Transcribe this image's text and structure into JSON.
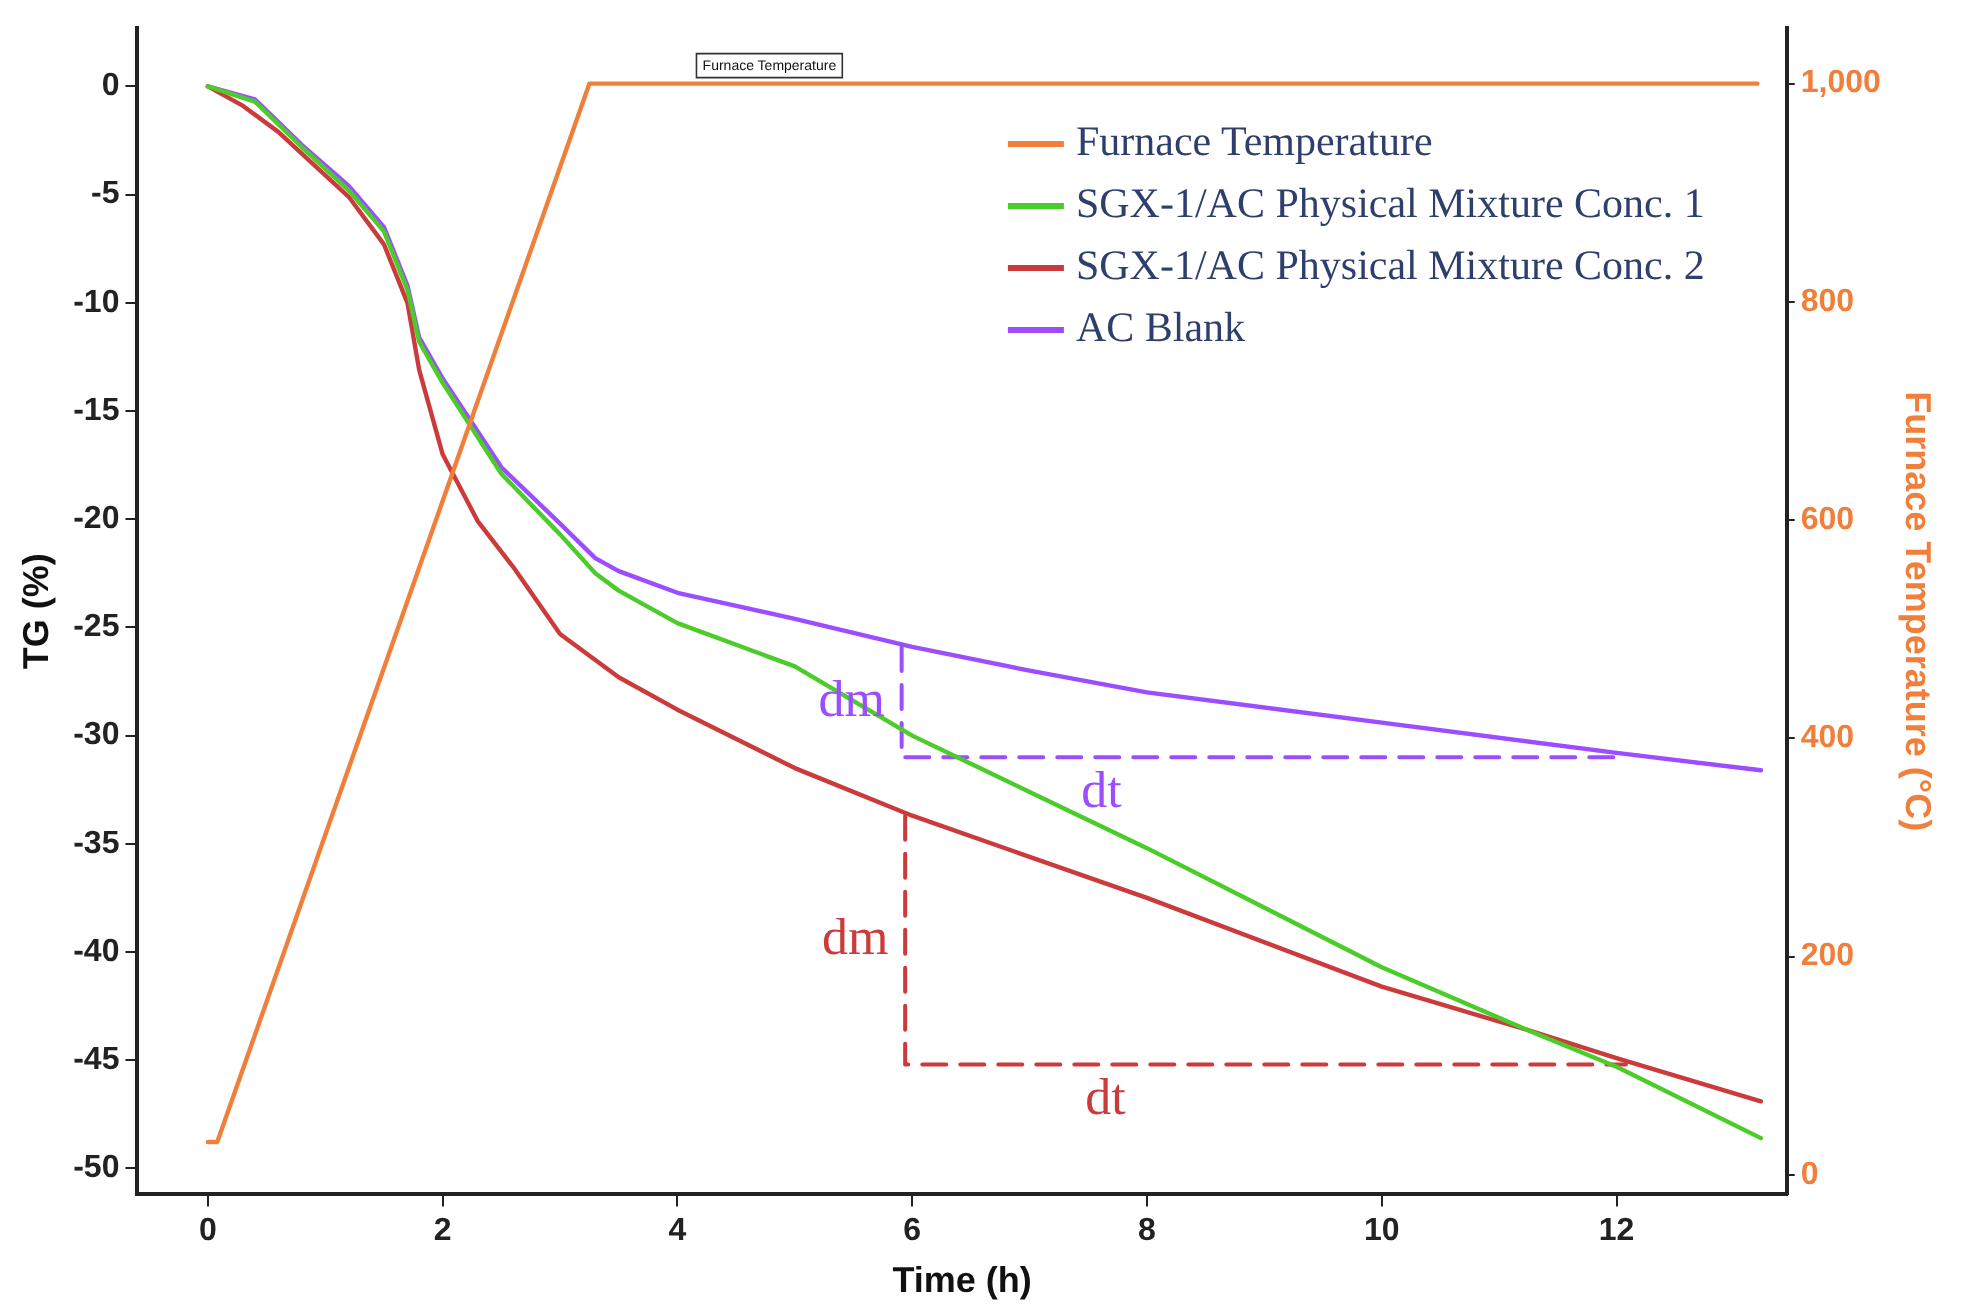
{
  "chart_data": {
    "type": "line",
    "xlabel": "Time (h)",
    "ylabel": "TG (%)",
    "y2label": "Furnace Temperature (°C)",
    "xlim": [
      -0.6,
      13.45
    ],
    "xticks": [
      0,
      2,
      4,
      6,
      8,
      10,
      12
    ],
    "ylim": [
      -51.2,
      2.7
    ],
    "yticks": [
      -50,
      -45,
      -40,
      -35,
      -30,
      -25,
      -20,
      -15,
      -10,
      -5,
      0
    ],
    "y2lim": [
      -18,
      1051
    ],
    "y2ticks": [
      0,
      200,
      400,
      600,
      800,
      {
        "value": 1000,
        "label": "1,000"
      }
    ],
    "grid": false,
    "legend": "top right",
    "marker": "none",
    "series": [
      {
        "name": "Furnace Temperature",
        "color": "#f07f3c",
        "axis": "y2",
        "x": [
          0,
          0.08,
          3.25,
          13.2
        ],
        "values": [
          30,
          30,
          1000,
          1000
        ]
      },
      {
        "name": "SGX-1/AC Physical Mixture Conc. 1",
        "color": "#4ccc2a",
        "x": [
          0,
          0.4,
          0.8,
          1.2,
          1.5,
          1.7,
          1.8,
          2,
          2.5,
          3,
          3.3,
          3.5,
          4,
          5,
          6,
          7,
          8,
          10,
          11.24,
          12,
          13.23
        ],
        "values": [
          0,
          -0.7,
          -2.8,
          -4.8,
          -6.7,
          -9.4,
          -11.8,
          -13.7,
          -17.9,
          -20.7,
          -22.5,
          -23.3,
          -24.8,
          -26.8,
          -30,
          -32.6,
          -35.2,
          -40.7,
          -43.6,
          -45.3,
          -48.6
        ]
      },
      {
        "name": "SGX-1/AC Physical Mixture Conc. 2",
        "color": "#cc3b3b",
        "x": [
          0,
          0.3,
          0.6,
          0.8,
          1.2,
          1.5,
          1.7,
          1.8,
          2,
          2.3,
          2.6,
          3,
          3.5,
          4,
          5,
          6,
          7,
          8,
          10,
          11.24,
          12,
          13.23
        ],
        "values": [
          0,
          -0.9,
          -2.1,
          -3.1,
          -5.1,
          -7.3,
          -10,
          -13.1,
          -17,
          -20.1,
          -22.2,
          -25.3,
          -27.3,
          -28.8,
          -31.5,
          -33.7,
          -35.6,
          -37.5,
          -41.6,
          -43.6,
          -44.9,
          -46.9
        ]
      },
      {
        "name": "AC Blank",
        "color": "#9b4dff",
        "x": [
          0,
          0.4,
          0.8,
          1.2,
          1.5,
          1.7,
          1.8,
          2,
          2.5,
          3,
          3.3,
          3.5,
          4,
          5,
          6,
          7,
          8,
          10,
          12,
          13.23
        ],
        "values": [
          0,
          -0.6,
          -2.7,
          -4.6,
          -6.5,
          -9.2,
          -11.6,
          -13.5,
          -17.6,
          -20.2,
          -21.8,
          -22.4,
          -23.4,
          -24.6,
          -25.9,
          -27,
          -28,
          -29.4,
          -30.8,
          -31.6
        ]
      },
      {
        "color": "#9b4dff",
        "line_style": "dashed",
        "x": [
          5.91,
          5.91,
          12.04
        ],
        "values": [
          -25.9,
          -31,
          -31
        ]
      },
      {
        "color": "#cc3b3b",
        "line_style": "dashed",
        "x": [
          5.94,
          5.94,
          12.08
        ],
        "values": [
          -33.7,
          -45.2,
          -45.2
        ]
      }
    ],
    "annotations": [
      "Furnace Temperature",
      "dm",
      "dt",
      "dm",
      "dt"
    ]
  }
}
